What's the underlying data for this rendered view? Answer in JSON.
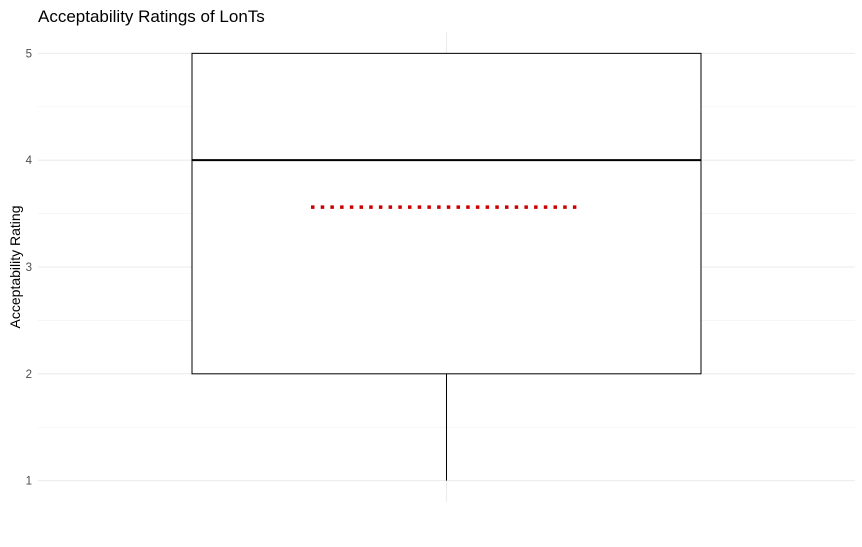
{
  "chart_data": {
    "type": "box",
    "title": "Acceptability Ratings of LonTs",
    "xlabel": "",
    "ylabel": "Acceptability Rating",
    "ylim": [
      0.8,
      5.2
    ],
    "yticks": [
      1,
      2,
      3,
      4,
      5
    ],
    "grid": true,
    "legend": "none",
    "box": {
      "min": 1,
      "q1": 2,
      "median": 4,
      "q3": 5,
      "max": 5,
      "mean": 3.56
    },
    "colors": {
      "box_outline": "#000000",
      "whisker": "#000000",
      "mean_line": "#cc0000",
      "grid_major": "#ebebeb",
      "grid_minor": "#f3f3f3",
      "tick_label": "#4d4d4d"
    }
  }
}
